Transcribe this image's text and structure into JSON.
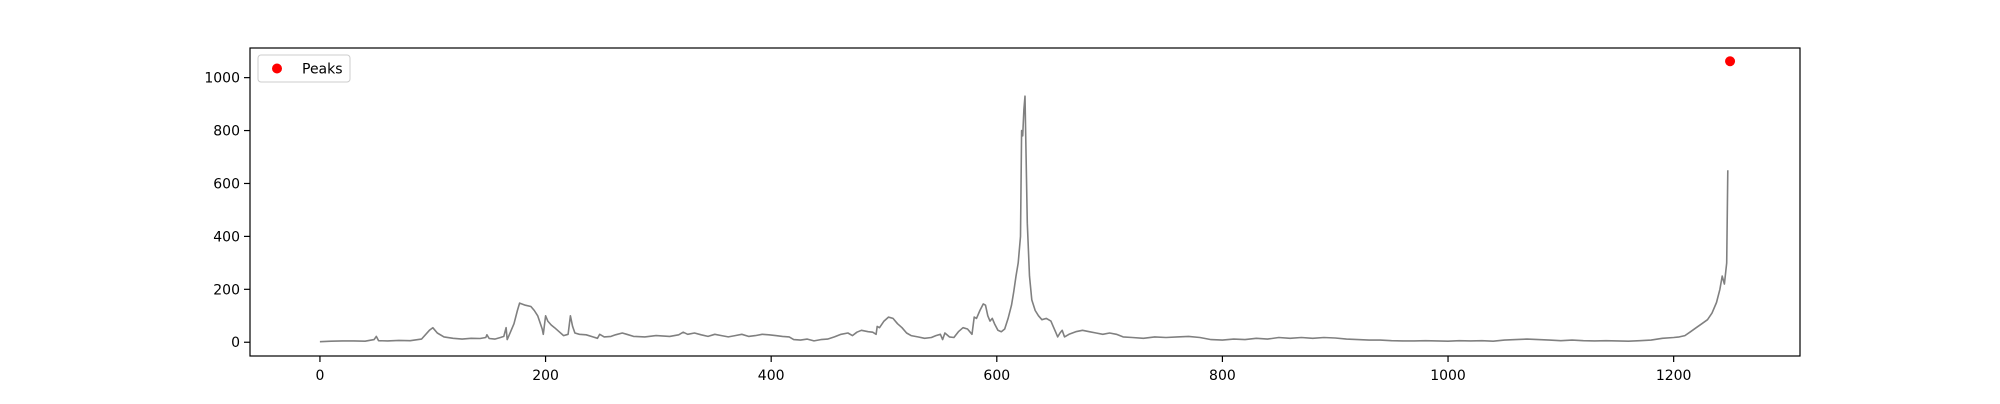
{
  "chart_data": {
    "type": "line",
    "title": "",
    "xlabel": "",
    "ylabel": "",
    "xlim": [
      -62,
      1312
    ],
    "ylim": [
      -52,
      1112
    ],
    "xticks": [
      0,
      200,
      400,
      600,
      800,
      1000,
      1200
    ],
    "yticks": [
      0,
      200,
      400,
      600,
      800,
      1000
    ],
    "grid": false,
    "legend_position": "upper-left",
    "colors": {
      "line": "#808080",
      "peaks": "#ff0000"
    },
    "series": [
      {
        "kind": "line",
        "points": [
          [
            0,
            2
          ],
          [
            10,
            4
          ],
          [
            20,
            5
          ],
          [
            30,
            5
          ],
          [
            40,
            4
          ],
          [
            48,
            10
          ],
          [
            50,
            22
          ],
          [
            52,
            6
          ],
          [
            60,
            5
          ],
          [
            70,
            7
          ],
          [
            80,
            6
          ],
          [
            90,
            12
          ],
          [
            97,
            45
          ],
          [
            100,
            55
          ],
          [
            104,
            35
          ],
          [
            110,
            20
          ],
          [
            118,
            15
          ],
          [
            126,
            12
          ],
          [
            134,
            15
          ],
          [
            142,
            14
          ],
          [
            147,
            18
          ],
          [
            148,
            28
          ],
          [
            150,
            14
          ],
          [
            155,
            12
          ],
          [
            160,
            18
          ],
          [
            163,
            22
          ],
          [
            165,
            55
          ],
          [
            166,
            10
          ],
          [
            168,
            30
          ],
          [
            172,
            70
          ],
          [
            175,
            120
          ],
          [
            177,
            148
          ],
          [
            182,
            140
          ],
          [
            187,
            135
          ],
          [
            190,
            120
          ],
          [
            193,
            100
          ],
          [
            197,
            50
          ],
          [
            198,
            30
          ],
          [
            200,
            100
          ],
          [
            202,
            80
          ],
          [
            205,
            65
          ],
          [
            208,
            55
          ],
          [
            212,
            40
          ],
          [
            216,
            25
          ],
          [
            220,
            30
          ],
          [
            222,
            100
          ],
          [
            224,
            60
          ],
          [
            226,
            35
          ],
          [
            230,
            30
          ],
          [
            236,
            28
          ],
          [
            242,
            20
          ],
          [
            246,
            15
          ],
          [
            248,
            30
          ],
          [
            252,
            20
          ],
          [
            258,
            22
          ],
          [
            262,
            28
          ],
          [
            268,
            35
          ],
          [
            272,
            30
          ],
          [
            278,
            22
          ],
          [
            288,
            20
          ],
          [
            298,
            25
          ],
          [
            310,
            22
          ],
          [
            318,
            28
          ],
          [
            322,
            38
          ],
          [
            326,
            30
          ],
          [
            332,
            35
          ],
          [
            338,
            28
          ],
          [
            344,
            22
          ],
          [
            350,
            30
          ],
          [
            356,
            25
          ],
          [
            362,
            20
          ],
          [
            368,
            25
          ],
          [
            374,
            30
          ],
          [
            380,
            22
          ],
          [
            386,
            25
          ],
          [
            392,
            30
          ],
          [
            398,
            28
          ],
          [
            404,
            25
          ],
          [
            410,
            22
          ],
          [
            416,
            20
          ],
          [
            420,
            10
          ],
          [
            426,
            8
          ],
          [
            432,
            12
          ],
          [
            438,
            5
          ],
          [
            444,
            10
          ],
          [
            450,
            12
          ],
          [
            456,
            20
          ],
          [
            462,
            30
          ],
          [
            468,
            35
          ],
          [
            472,
            25
          ],
          [
            476,
            38
          ],
          [
            480,
            45
          ],
          [
            486,
            40
          ],
          [
            490,
            38
          ],
          [
            493,
            30
          ],
          [
            494,
            60
          ],
          [
            496,
            55
          ],
          [
            500,
            80
          ],
          [
            504,
            95
          ],
          [
            508,
            90
          ],
          [
            512,
            70
          ],
          [
            516,
            55
          ],
          [
            520,
            35
          ],
          [
            524,
            25
          ],
          [
            530,
            20
          ],
          [
            536,
            15
          ],
          [
            542,
            18
          ],
          [
            546,
            25
          ],
          [
            550,
            30
          ],
          [
            552,
            10
          ],
          [
            554,
            35
          ],
          [
            558,
            20
          ],
          [
            562,
            18
          ],
          [
            566,
            40
          ],
          [
            570,
            55
          ],
          [
            574,
            50
          ],
          [
            578,
            30
          ],
          [
            580,
            95
          ],
          [
            582,
            90
          ],
          [
            585,
            120
          ],
          [
            588,
            145
          ],
          [
            590,
            140
          ],
          [
            592,
            100
          ],
          [
            594,
            80
          ],
          [
            596,
            90
          ],
          [
            598,
            70
          ],
          [
            601,
            45
          ],
          [
            604,
            40
          ],
          [
            607,
            50
          ],
          [
            610,
            90
          ],
          [
            613,
            140
          ],
          [
            615,
            190
          ],
          [
            617,
            250
          ],
          [
            619,
            300
          ],
          [
            621,
            400
          ],
          [
            622,
            800
          ],
          [
            623,
            780
          ],
          [
            624,
            880
          ],
          [
            625,
            930
          ],
          [
            626,
            700
          ],
          [
            627,
            450
          ],
          [
            629,
            250
          ],
          [
            631,
            160
          ],
          [
            634,
            120
          ],
          [
            637,
            100
          ],
          [
            640,
            85
          ],
          [
            644,
            90
          ],
          [
            648,
            80
          ],
          [
            650,
            60
          ],
          [
            652,
            40
          ],
          [
            654,
            20
          ],
          [
            656,
            35
          ],
          [
            658,
            45
          ],
          [
            660,
            20
          ],
          [
            664,
            30
          ],
          [
            670,
            40
          ],
          [
            676,
            45
          ],
          [
            682,
            40
          ],
          [
            688,
            35
          ],
          [
            694,
            30
          ],
          [
            700,
            35
          ],
          [
            706,
            30
          ],
          [
            712,
            20
          ],
          [
            720,
            18
          ],
          [
            730,
            15
          ],
          [
            740,
            20
          ],
          [
            750,
            18
          ],
          [
            760,
            20
          ],
          [
            770,
            22
          ],
          [
            780,
            18
          ],
          [
            790,
            10
          ],
          [
            800,
            8
          ],
          [
            810,
            12
          ],
          [
            820,
            10
          ],
          [
            830,
            15
          ],
          [
            840,
            12
          ],
          [
            850,
            18
          ],
          [
            860,
            15
          ],
          [
            870,
            18
          ],
          [
            880,
            15
          ],
          [
            890,
            18
          ],
          [
            900,
            16
          ],
          [
            910,
            12
          ],
          [
            920,
            10
          ],
          [
            930,
            8
          ],
          [
            940,
            8
          ],
          [
            950,
            6
          ],
          [
            960,
            5
          ],
          [
            970,
            5
          ],
          [
            980,
            6
          ],
          [
            990,
            5
          ],
          [
            1000,
            4
          ],
          [
            1010,
            6
          ],
          [
            1020,
            5
          ],
          [
            1030,
            6
          ],
          [
            1040,
            4
          ],
          [
            1050,
            8
          ],
          [
            1060,
            10
          ],
          [
            1070,
            12
          ],
          [
            1080,
            10
          ],
          [
            1090,
            8
          ],
          [
            1100,
            6
          ],
          [
            1110,
            8
          ],
          [
            1120,
            6
          ],
          [
            1130,
            5
          ],
          [
            1140,
            6
          ],
          [
            1150,
            5
          ],
          [
            1160,
            4
          ],
          [
            1170,
            6
          ],
          [
            1180,
            8
          ],
          [
            1190,
            15
          ],
          [
            1200,
            18
          ],
          [
            1205,
            20
          ],
          [
            1210,
            25
          ],
          [
            1215,
            40
          ],
          [
            1220,
            55
          ],
          [
            1225,
            70
          ],
          [
            1230,
            85
          ],
          [
            1234,
            110
          ],
          [
            1238,
            150
          ],
          [
            1241,
            200
          ],
          [
            1243,
            250
          ],
          [
            1245,
            220
          ],
          [
            1247,
            300
          ],
          [
            1248,
            650
          ]
        ]
      },
      {
        "name": "Peaks",
        "kind": "scatter",
        "points": [
          [
            1250,
            1062
          ]
        ]
      }
    ]
  }
}
